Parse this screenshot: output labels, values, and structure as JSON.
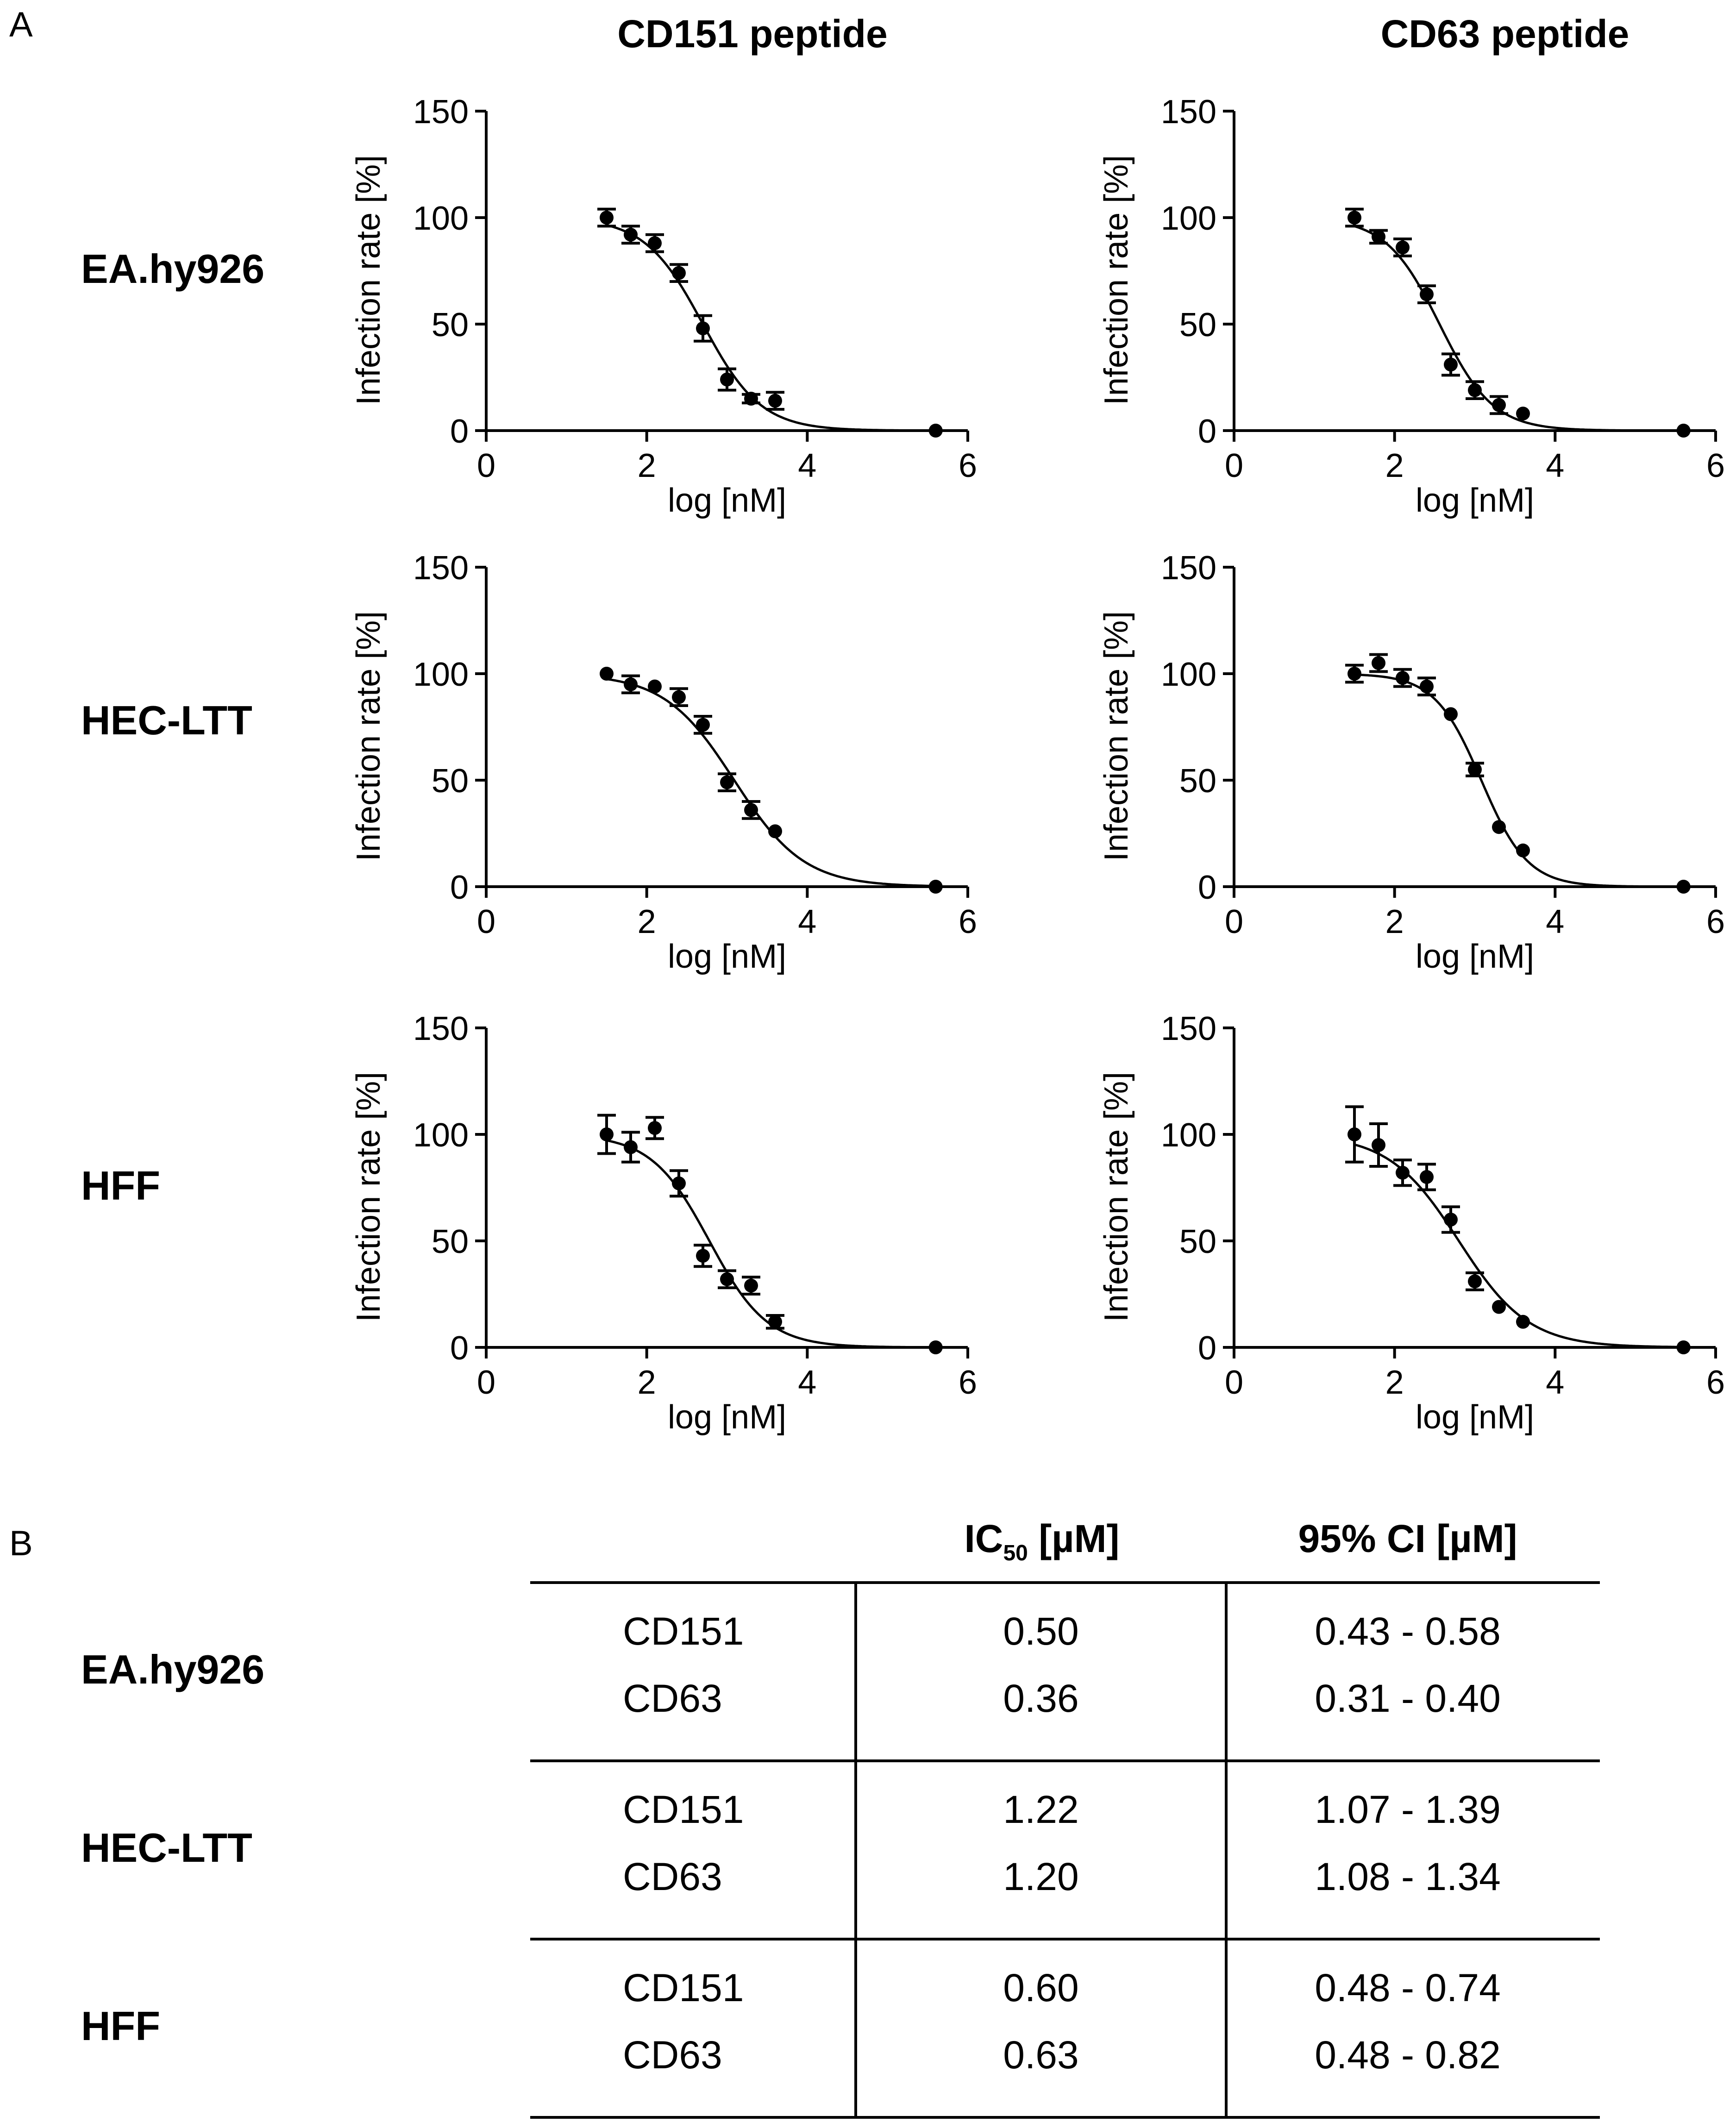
{
  "panels": {
    "a": "A",
    "b": "B"
  },
  "column_titles": [
    "CD151 peptide",
    "CD63 peptide"
  ],
  "row_labels": [
    "EA.hy926",
    "HEC-LTT",
    "HFF"
  ],
  "chart_data": [
    {
      "type": "scatter",
      "title": "EA.hy926 – CD151 peptide",
      "xlabel": "log [nM]",
      "ylabel": "Infection rate [%]",
      "xlim": [
        0,
        6
      ],
      "ylim": [
        0,
        150
      ],
      "xticks": [
        "0",
        "2",
        "4",
        "6"
      ],
      "yticks": [
        "0",
        "50",
        "100",
        "150"
      ],
      "x": [
        1.5,
        1.8,
        2.1,
        2.4,
        2.7,
        3.0,
        3.3,
        3.6,
        5.6
      ],
      "y": [
        100,
        92,
        88,
        74,
        48,
        24,
        15,
        14,
        0
      ],
      "err": [
        4,
        4,
        4,
        4,
        6,
        5,
        2,
        4,
        0
      ],
      "fit": {
        "top": 100,
        "bottom": 0,
        "logIC50": 2.7,
        "hill": 1.2
      }
    },
    {
      "type": "scatter",
      "title": "EA.hy926 – CD63 peptide",
      "xlabel": "log [nM]",
      "ylabel": "Infection rate [%]",
      "xlim": [
        0,
        6
      ],
      "ylim": [
        0,
        150
      ],
      "xticks": [
        "0",
        "2",
        "4",
        "6"
      ],
      "yticks": [
        "0",
        "50",
        "100",
        "150"
      ],
      "x": [
        1.5,
        1.8,
        2.1,
        2.4,
        2.7,
        3.0,
        3.3,
        3.6,
        5.6
      ],
      "y": [
        100,
        91,
        86,
        64,
        31,
        19,
        12,
        8,
        0
      ],
      "err": [
        4,
        3,
        4,
        4,
        5,
        4,
        4,
        0,
        0
      ],
      "fit": {
        "top": 100,
        "bottom": 0,
        "logIC50": 2.56,
        "hill": 1.3
      }
    },
    {
      "type": "scatter",
      "title": "HEC-LTT – CD151 peptide",
      "xlabel": "log [nM]",
      "ylabel": "Infection rate [%]",
      "xlim": [
        0,
        6
      ],
      "ylim": [
        0,
        150
      ],
      "xticks": [
        "0",
        "2",
        "4",
        "6"
      ],
      "yticks": [
        "0",
        "50",
        "100",
        "150"
      ],
      "x": [
        1.5,
        1.8,
        2.1,
        2.4,
        2.7,
        3.0,
        3.3,
        3.6,
        5.6
      ],
      "y": [
        100,
        95,
        94,
        89,
        76,
        49,
        36,
        26,
        0
      ],
      "err": [
        0,
        4,
        0,
        4,
        4,
        4,
        4,
        0,
        0
      ],
      "fit": {
        "top": 100,
        "bottom": 0,
        "logIC50": 3.09,
        "hill": 1.0
      }
    },
    {
      "type": "scatter",
      "title": "HEC-LTT – CD63 peptide",
      "xlabel": "log [nM]",
      "ylabel": "Infection rate [%]",
      "xlim": [
        0,
        6
      ],
      "ylim": [
        0,
        150
      ],
      "xticks": [
        "0",
        "2",
        "4",
        "6"
      ],
      "yticks": [
        "0",
        "50",
        "100",
        "150"
      ],
      "x": [
        1.5,
        1.8,
        2.1,
        2.4,
        2.7,
        3.0,
        3.3,
        3.6,
        5.6
      ],
      "y": [
        100,
        105,
        98,
        94,
        81,
        55,
        28,
        17,
        0
      ],
      "err": [
        4,
        4,
        4,
        4,
        0,
        3,
        0,
        0,
        0
      ],
      "fit": {
        "top": 100,
        "bottom": 0,
        "logIC50": 3.08,
        "hill": 1.5
      }
    },
    {
      "type": "scatter",
      "title": "HFF – CD151 peptide",
      "xlabel": "log [nM]",
      "ylabel": "Infection rate [%]",
      "xlim": [
        0,
        6
      ],
      "ylim": [
        0,
        150
      ],
      "xticks": [
        "0",
        "2",
        "4",
        "6"
      ],
      "yticks": [
        "0",
        "50",
        "100",
        "150"
      ],
      "x": [
        1.5,
        1.8,
        2.1,
        2.4,
        2.7,
        3.0,
        3.3,
        3.6,
        5.6
      ],
      "y": [
        100,
        94,
        103,
        77,
        43,
        32,
        29,
        12,
        0
      ],
      "err": [
        9,
        7,
        5,
        6,
        5,
        4,
        4,
        3,
        0
      ],
      "fit": {
        "top": 100,
        "bottom": 0,
        "logIC50": 2.78,
        "hill": 1.2
      }
    },
    {
      "type": "scatter",
      "title": "HFF – CD63 peptide",
      "xlabel": "log [nM]",
      "ylabel": "Infection rate [%]",
      "xlim": [
        0,
        6
      ],
      "ylim": [
        0,
        150
      ],
      "xticks": [
        "0",
        "2",
        "4",
        "6"
      ],
      "yticks": [
        "0",
        "50",
        "100",
        "150"
      ],
      "x": [
        1.5,
        1.8,
        2.1,
        2.4,
        2.7,
        3.0,
        3.3,
        3.6,
        5.6
      ],
      "y": [
        100,
        95,
        82,
        80,
        60,
        31,
        19,
        12,
        0
      ],
      "err": [
        13,
        10,
        6,
        6,
        6,
        4,
        0,
        0,
        0
      ],
      "fit": {
        "top": 100,
        "bottom": 0,
        "logIC50": 2.8,
        "hill": 1.0
      }
    }
  ],
  "table": {
    "header_ic50": "IC",
    "header_ic50_sub": "50",
    "header_ic50_unit": " [µM]",
    "header_ci": "95% CI [µM]",
    "rows": [
      {
        "cell": "EA.hy926",
        "peptides": [
          "CD151",
          "CD63"
        ],
        "ic50": [
          "0.50",
          "0.36"
        ],
        "ci": [
          "0.43 - 0.58",
          "0.31 - 0.40"
        ]
      },
      {
        "cell": "HEC-LTT",
        "peptides": [
          "CD151",
          "CD63"
        ],
        "ic50": [
          "1.22",
          "1.20"
        ],
        "ci": [
          "1.07 - 1.39",
          "1.08 - 1.34"
        ]
      },
      {
        "cell": "HFF",
        "peptides": [
          "CD151",
          "CD63"
        ],
        "ic50": [
          "0.60",
          "0.63"
        ],
        "ci": [
          "0.48 - 0.74",
          "0.48 - 0.82"
        ]
      }
    ]
  }
}
